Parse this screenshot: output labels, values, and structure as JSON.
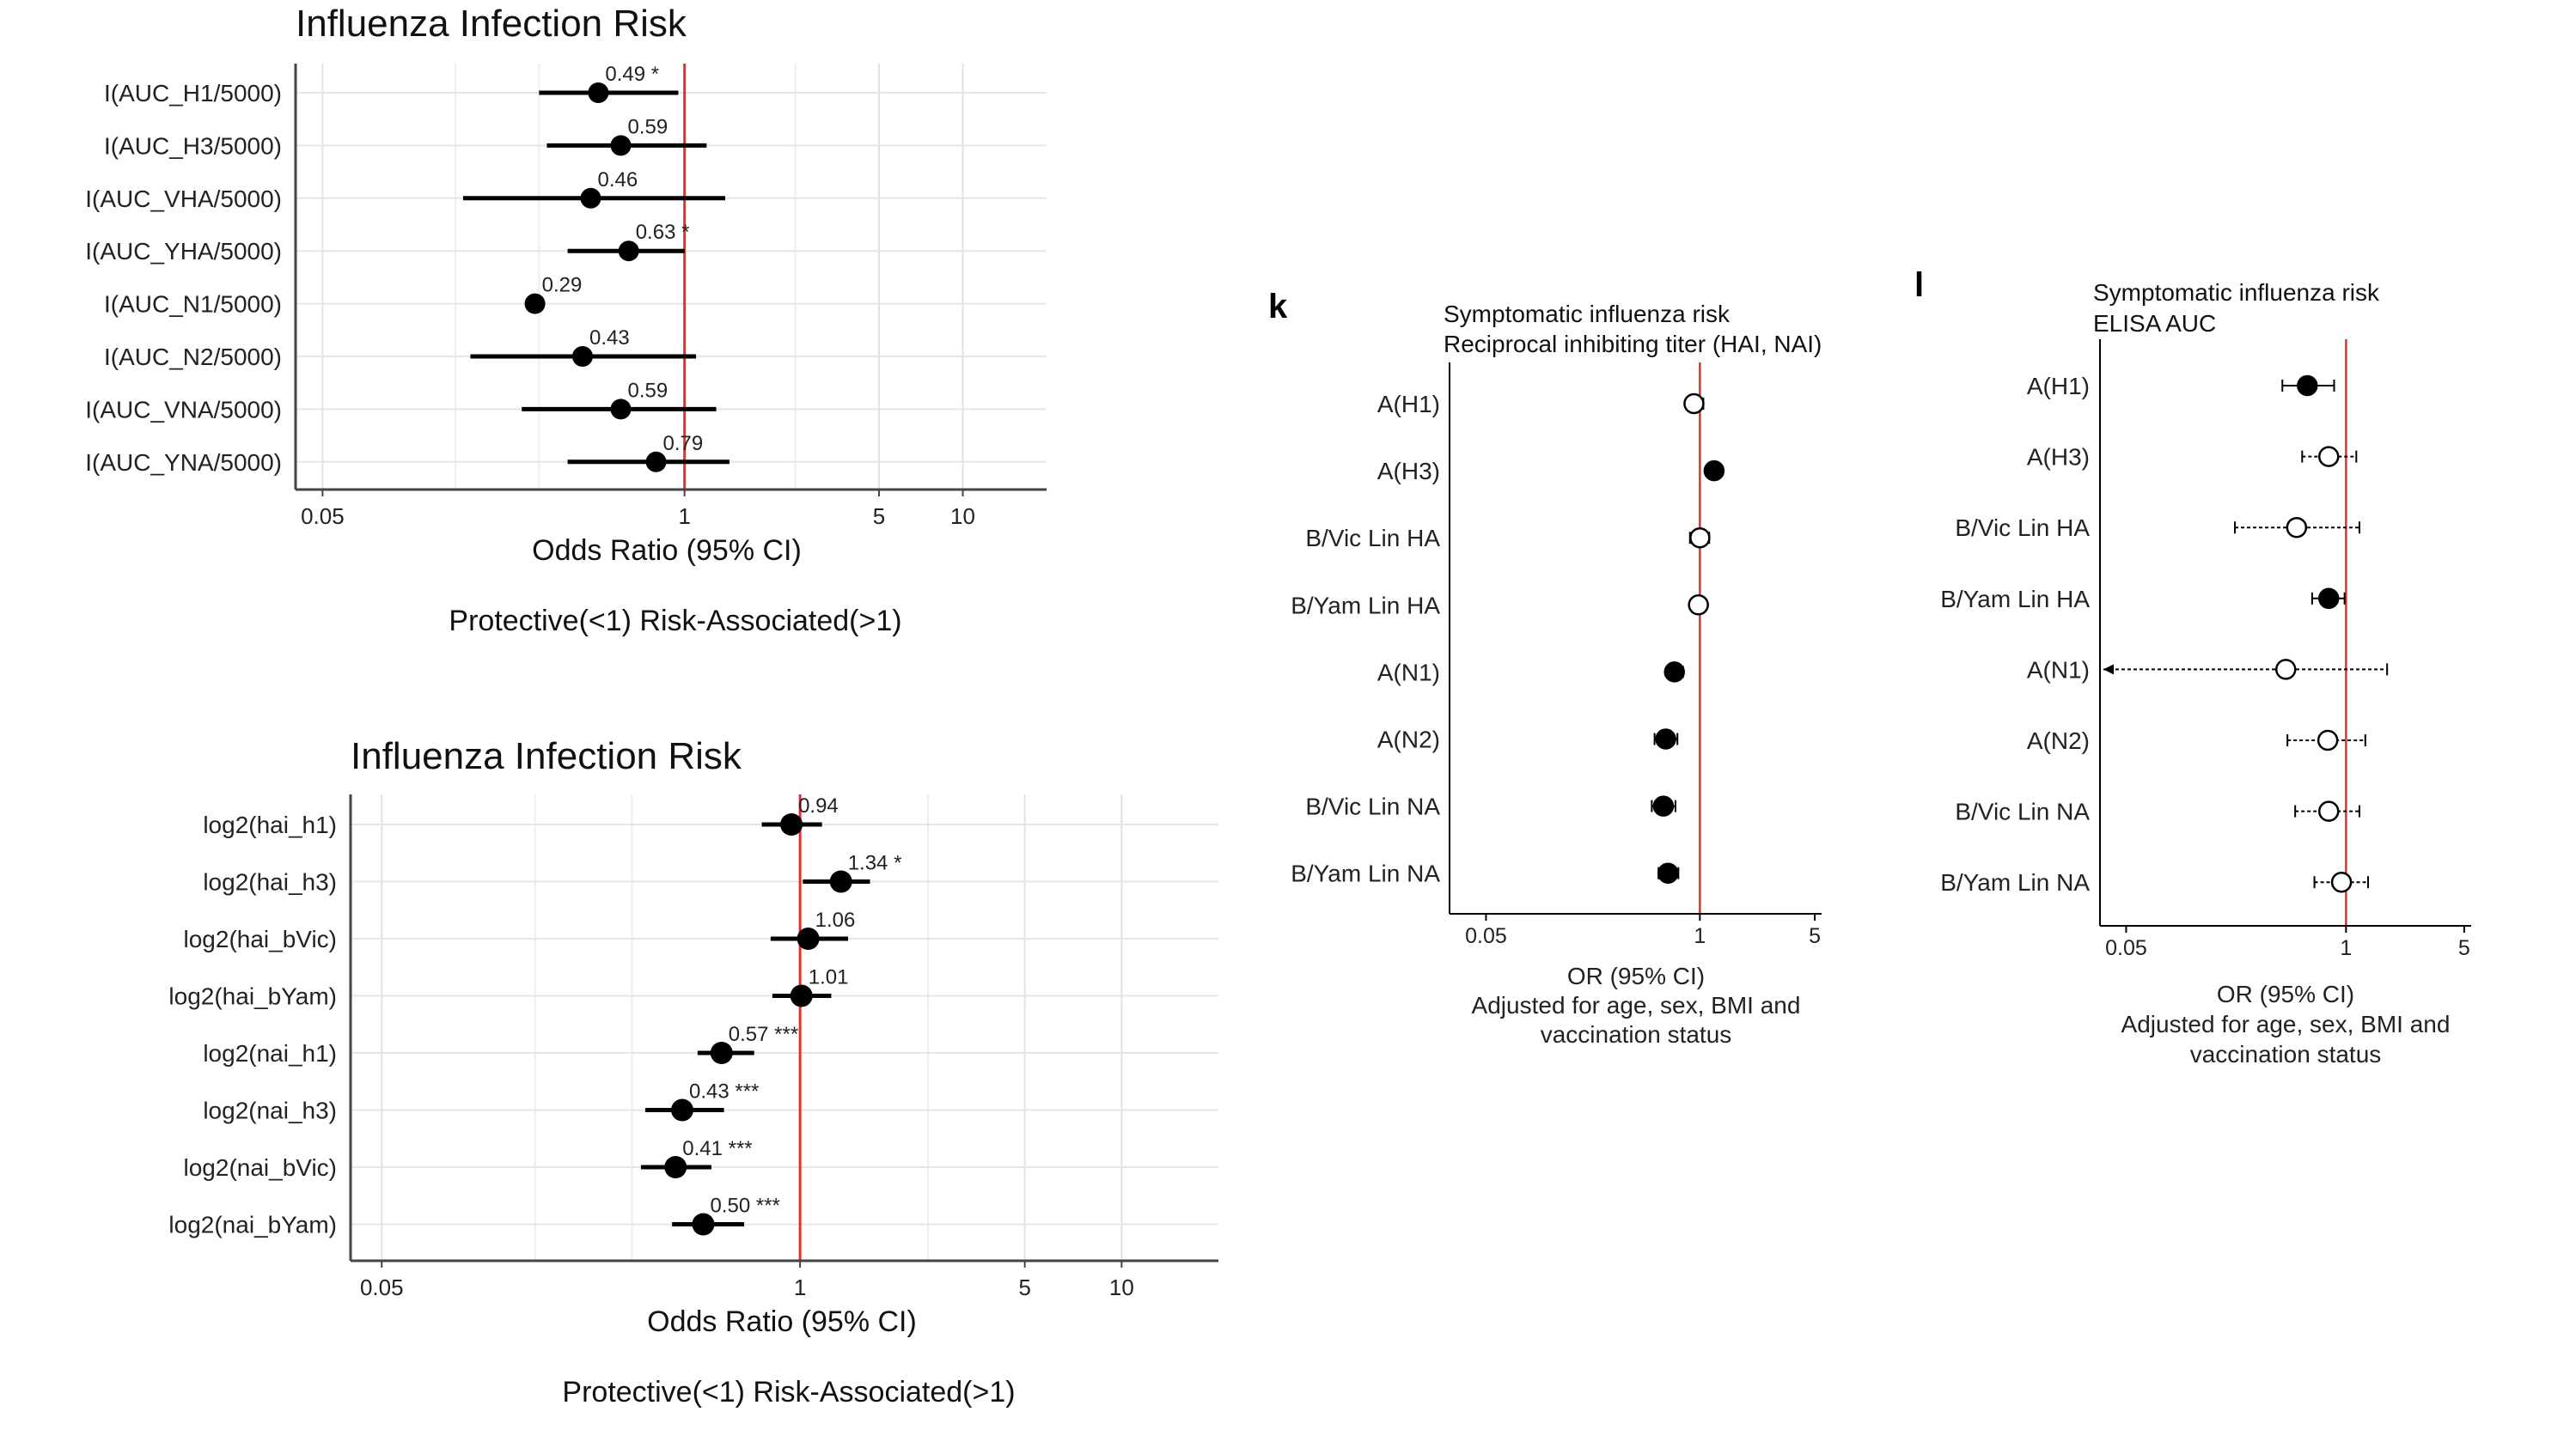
{
  "chart_data": [
    {
      "type": "forest",
      "title": "Influenza Infection Risk",
      "xlabel": "Odds Ratio (95% CI)",
      "note": "Protective(<1) Risk-Associated(>1)",
      "x_scale": "log",
      "xlim": [
        0.04,
        20
      ],
      "xticks": [
        0.05,
        1,
        5,
        10
      ],
      "xtick_labels": [
        "0.05",
        "1",
        "5",
        "10"
      ],
      "reference_line": 1,
      "reference_color": "#e0312a",
      "point_color": "#000000",
      "grid": true,
      "rows": [
        {
          "label": "I(AUC_H1/5000)",
          "or": 0.49,
          "lo": 0.3,
          "hi": 0.95,
          "value_label": "0.49 *"
        },
        {
          "label": "I(AUC_H3/5000)",
          "or": 0.59,
          "lo": 0.32,
          "hi": 1.2,
          "value_label": "0.59"
        },
        {
          "label": "I(AUC_VHA/5000)",
          "or": 0.46,
          "lo": 0.16,
          "hi": 1.4,
          "value_label": "0.46"
        },
        {
          "label": "I(AUC_YHA/5000)",
          "or": 0.63,
          "lo": 0.38,
          "hi": 1.0,
          "value_label": "0.63 *"
        },
        {
          "label": "I(AUC_N1/5000)",
          "or": 0.29,
          "lo": 0.27,
          "hi": 0.31,
          "value_label": "0.29"
        },
        {
          "label": "I(AUC_N2/5000)",
          "or": 0.43,
          "lo": 0.17,
          "hi": 1.1,
          "value_label": "0.43"
        },
        {
          "label": "I(AUC_VNA/5000)",
          "or": 0.59,
          "lo": 0.26,
          "hi": 1.3,
          "value_label": "0.59"
        },
        {
          "label": "I(AUC_YNA/5000)",
          "or": 0.79,
          "lo": 0.38,
          "hi": 1.45,
          "value_label": "0.79"
        }
      ]
    },
    {
      "type": "forest",
      "title": "Influenza Infection Risk",
      "xlabel": "Odds Ratio (95% CI)",
      "note": "Protective(<1) Risk-Associated(>1)",
      "x_scale": "log",
      "xlim": [
        0.04,
        20
      ],
      "xticks": [
        0.05,
        1,
        5,
        10
      ],
      "xtick_labels": [
        "0.05",
        "1",
        "5",
        "10"
      ],
      "reference_line": 1,
      "reference_color": "#e0312a",
      "point_color": "#000000",
      "grid": true,
      "rows": [
        {
          "label": "log2(hai_h1)",
          "or": 0.94,
          "lo": 0.76,
          "hi": 1.17,
          "value_label": "0.94"
        },
        {
          "label": "log2(hai_h3)",
          "or": 1.34,
          "lo": 1.02,
          "hi": 1.65,
          "value_label": "1.34 *"
        },
        {
          "label": "log2(hai_bVic)",
          "or": 1.06,
          "lo": 0.81,
          "hi": 1.41,
          "value_label": "1.06"
        },
        {
          "label": "log2(hai_bYam)",
          "or": 1.01,
          "lo": 0.82,
          "hi": 1.25,
          "value_label": "1.01"
        },
        {
          "label": "log2(nai_h1)",
          "or": 0.57,
          "lo": 0.48,
          "hi": 0.72,
          "value_label": "0.57 ***"
        },
        {
          "label": "log2(nai_h3)",
          "or": 0.43,
          "lo": 0.33,
          "hi": 0.58,
          "value_label": "0.43 ***"
        },
        {
          "label": "log2(nai_bVic)",
          "or": 0.41,
          "lo": 0.32,
          "hi": 0.53,
          "value_label": "0.41 ***"
        },
        {
          "label": "log2(nai_bYam)",
          "or": 0.5,
          "lo": 0.4,
          "hi": 0.67,
          "value_label": "0.50 ***"
        }
      ]
    },
    {
      "type": "forest",
      "panel_letter": "k",
      "title_lines": [
        "Symptomatic influenza risk",
        "Reciprocal inhibiting titer (HAI, NAI)"
      ],
      "xlabel_lines": [
        "OR (95% CI)",
        "Adjusted for age, sex, BMI and",
        "vaccination status"
      ],
      "x_scale": "log",
      "xlim": [
        0.03,
        5.5
      ],
      "xticks": [
        0.05,
        1,
        5
      ],
      "xtick_labels": [
        "0.05",
        "1",
        "5"
      ],
      "reference_line": 1,
      "reference_color": "#d9362e",
      "grid": false,
      "rows": [
        {
          "label": "A(H1)",
          "or": 0.92,
          "lo": 0.84,
          "hi": 1.05,
          "style": "open"
        },
        {
          "label": "A(H3)",
          "or": 1.22,
          "lo": 1.1,
          "hi": 1.35,
          "style": "filled"
        },
        {
          "label": "B/Vic Lin HA",
          "or": 1.0,
          "lo": 0.87,
          "hi": 1.14,
          "style": "open"
        },
        {
          "label": "B/Yam Lin HA",
          "or": 0.98,
          "lo": 0.88,
          "hi": 1.09,
          "style": "open"
        },
        {
          "label": "A(N1)",
          "or": 0.7,
          "lo": 0.63,
          "hi": 0.79,
          "style": "filled"
        },
        {
          "label": "A(N2)",
          "or": 0.62,
          "lo": 0.53,
          "hi": 0.73,
          "style": "filled"
        },
        {
          "label": "B/Vic Lin NA",
          "or": 0.6,
          "lo": 0.51,
          "hi": 0.71,
          "style": "filled"
        },
        {
          "label": "B/Yam Lin NA",
          "or": 0.64,
          "lo": 0.56,
          "hi": 0.74,
          "style": "filled"
        }
      ]
    },
    {
      "type": "forest",
      "panel_letter": "l",
      "title_lines": [
        "Symptomatic influenza risk",
        "ELISA AUC"
      ],
      "xlabel_lines": [
        "OR (95% CI)",
        "Adjusted for age, sex, BMI and",
        "vaccination status"
      ],
      "x_scale": "log",
      "xlim": [
        0.035,
        5.5
      ],
      "xticks": [
        0.05,
        1,
        5
      ],
      "xtick_labels": [
        "0.05",
        "1",
        "5"
      ],
      "reference_line": 1,
      "reference_color": "#d9362e",
      "grid": false,
      "rows": [
        {
          "label": "A(H1)",
          "or": 0.59,
          "lo": 0.42,
          "hi": 0.85,
          "style": "filled",
          "ci": "solid"
        },
        {
          "label": "A(H3)",
          "or": 0.79,
          "lo": 0.55,
          "hi": 1.15,
          "style": "open",
          "ci": "dashed"
        },
        {
          "label": "B/Vic Lin HA",
          "or": 0.51,
          "lo": 0.22,
          "hi": 1.2,
          "style": "open",
          "ci": "dashed"
        },
        {
          "label": "B/Yam Lin HA",
          "or": 0.79,
          "lo": 0.63,
          "hi": 0.98,
          "style": "filled",
          "ci": "solid"
        },
        {
          "label": "A(N1)",
          "or": 0.44,
          "lo": 0.05,
          "hi": 1.75,
          "style": "open",
          "ci": "dashed",
          "lo_truncated": true
        },
        {
          "label": "A(N2)",
          "or": 0.78,
          "lo": 0.45,
          "hi": 1.3,
          "style": "open",
          "ci": "dashed"
        },
        {
          "label": "B/Vic Lin NA",
          "or": 0.79,
          "lo": 0.5,
          "hi": 1.2,
          "style": "open",
          "ci": "dashed"
        },
        {
          "label": "B/Yam Lin NA",
          "or": 0.94,
          "lo": 0.65,
          "hi": 1.35,
          "style": "open",
          "ci": "dashed"
        }
      ]
    }
  ]
}
